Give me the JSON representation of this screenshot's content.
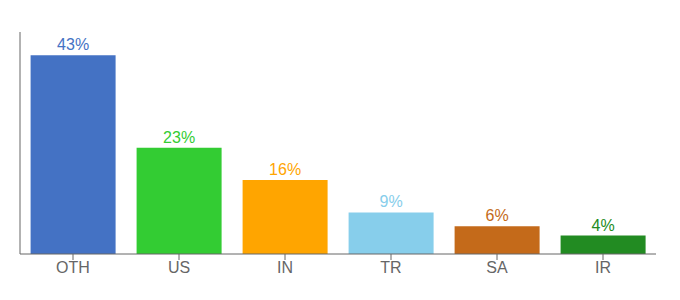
{
  "chart_data": {
    "type": "bar",
    "categories": [
      "OTH",
      "US",
      "IN",
      "TR",
      "SA",
      "IR"
    ],
    "values": [
      43,
      23,
      16,
      9,
      6,
      4
    ],
    "value_labels": [
      "43%",
      "23%",
      "16%",
      "9%",
      "6%",
      "4%"
    ],
    "data_labels": true,
    "colors": [
      "#4472C4",
      "#33CC33",
      "#FFA500",
      "#87CEEB",
      "#C46A1A",
      "#228B22"
    ],
    "ylim": [
      0,
      48
    ],
    "tick_labels": "x",
    "grid": false
  }
}
